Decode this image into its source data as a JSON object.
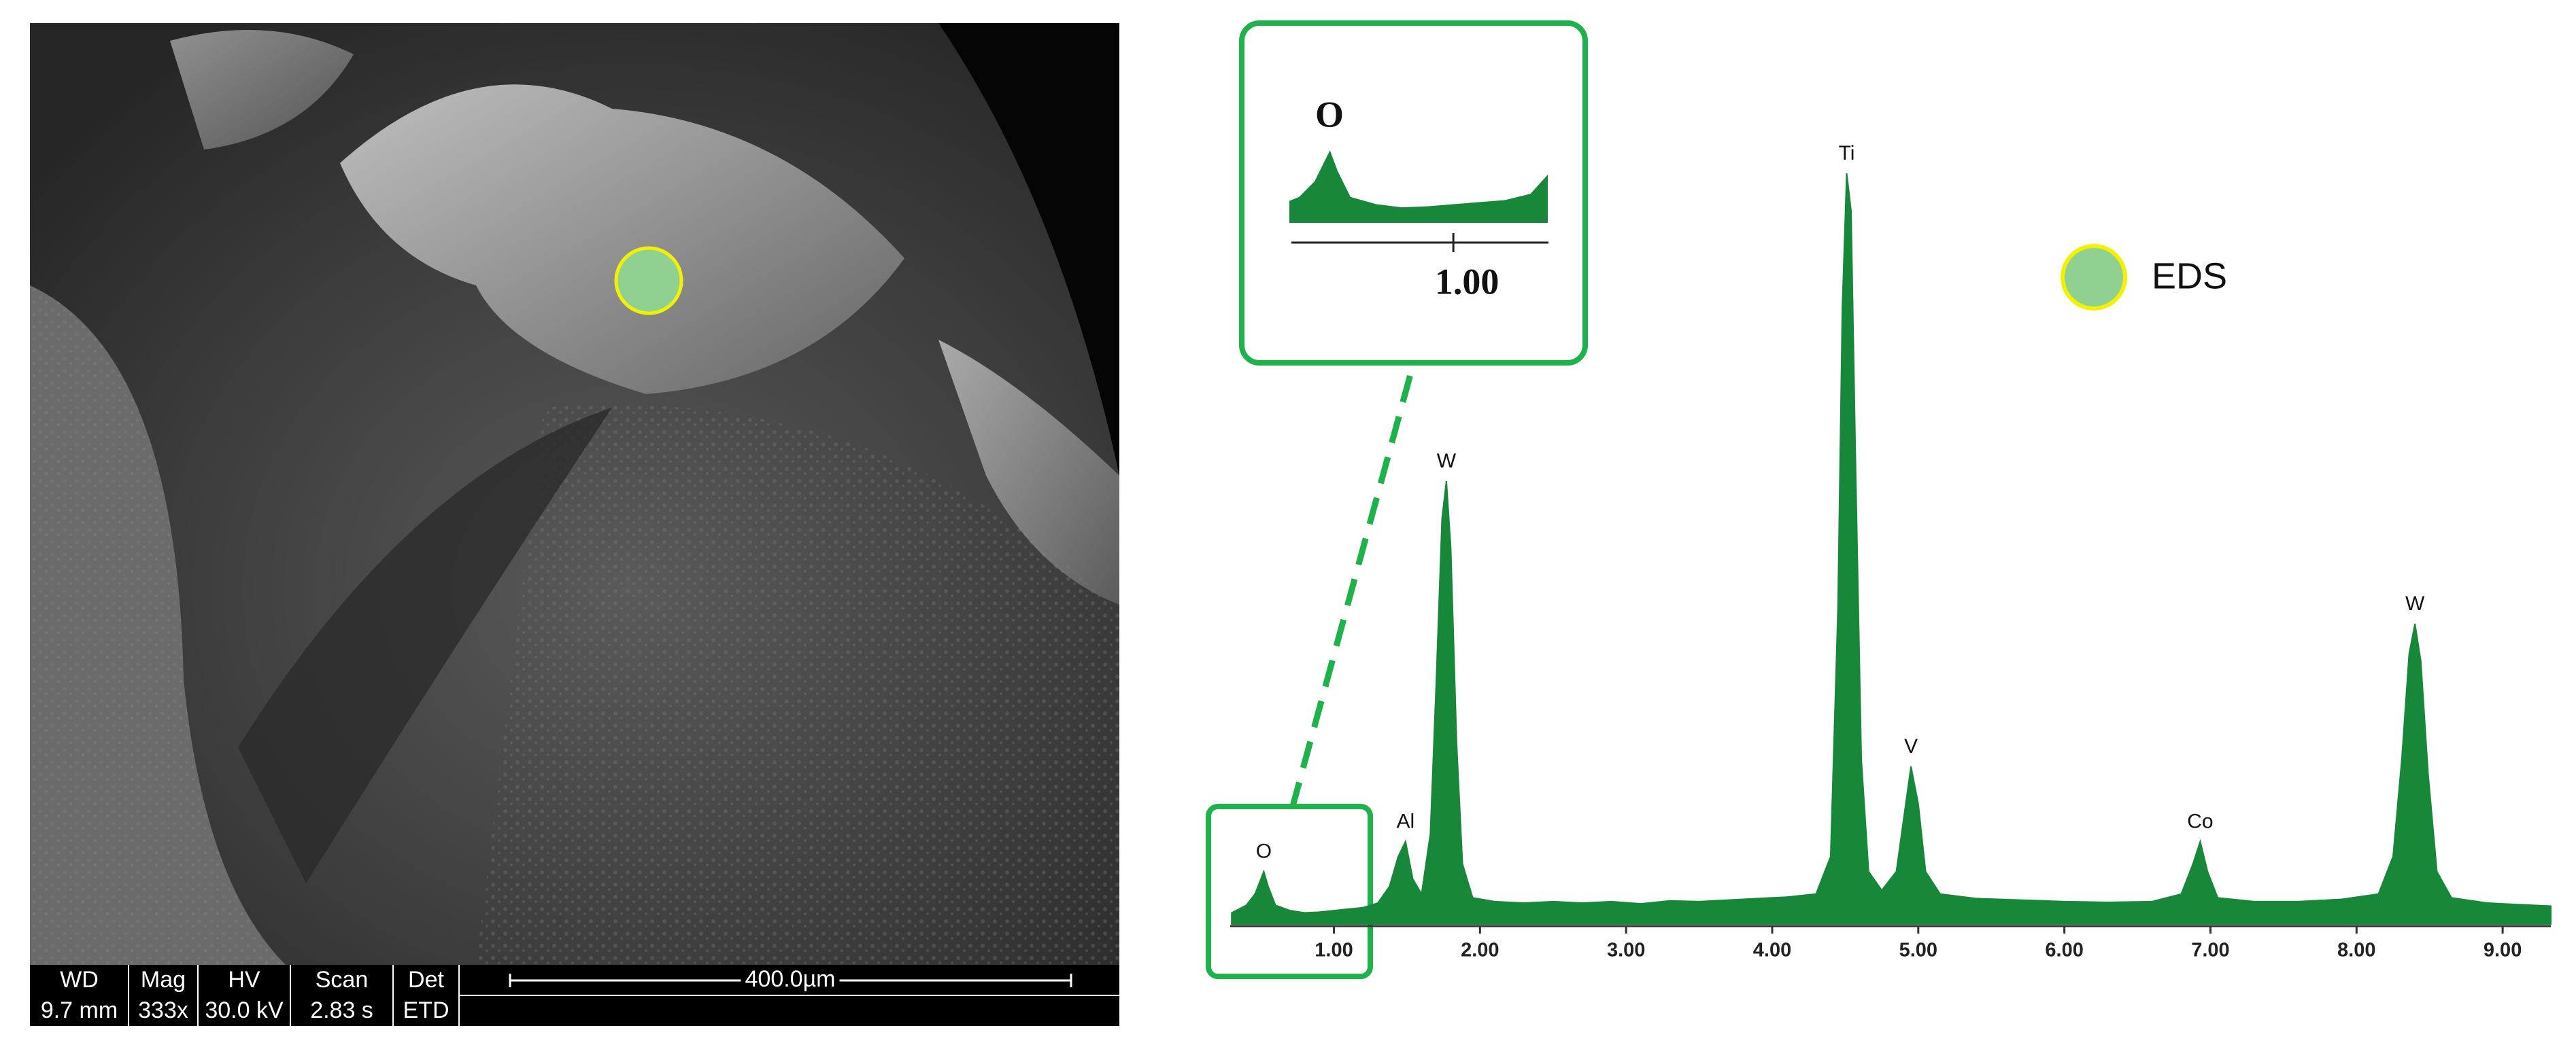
{
  "chart_data": {
    "type": "area",
    "color": "#17873a",
    "x": [
      0.3,
      0.4,
      0.46,
      0.5,
      0.52,
      0.55,
      0.6,
      0.7,
      0.8,
      0.9,
      1.0,
      1.1,
      1.2,
      1.3,
      1.38,
      1.44,
      1.49,
      1.54,
      1.6,
      1.66,
      1.7,
      1.74,
      1.77,
      1.8,
      1.84,
      1.88,
      1.95,
      2.1,
      2.3,
      2.5,
      2.7,
      2.9,
      3.1,
      3.3,
      3.5,
      3.7,
      3.9,
      4.1,
      4.3,
      4.4,
      4.45,
      4.48,
      4.51,
      4.54,
      4.57,
      4.61,
      4.66,
      4.75,
      4.85,
      4.9,
      4.95,
      5.0,
      5.05,
      5.15,
      5.4,
      5.7,
      6.0,
      6.3,
      6.6,
      6.8,
      6.88,
      6.93,
      6.98,
      7.05,
      7.3,
      7.6,
      7.9,
      8.15,
      8.25,
      8.31,
      8.36,
      8.4,
      8.44,
      8.49,
      8.55,
      8.65,
      8.9,
      9.1,
      9.33
    ],
    "values": [
      1.5,
      2.5,
      4,
      6,
      7,
      5,
      2.5,
      1.8,
      1.5,
      1.6,
      1.8,
      2,
      2.2,
      2.8,
      5,
      9,
      11,
      6,
      4,
      12,
      32,
      54,
      59,
      50,
      24,
      8,
      3.5,
      3,
      2.8,
      3,
      2.8,
      3,
      2.7,
      3.1,
      3,
      3.2,
      3.4,
      3.6,
      4,
      9,
      42,
      82,
      100,
      95,
      62,
      22,
      7,
      4.5,
      7,
      14,
      21,
      16,
      7,
      4,
      3.4,
      3.2,
      3,
      2.9,
      3,
      4,
      8,
      11,
      7,
      3.5,
      3,
      3,
      3.3,
      4,
      9,
      22,
      36,
      40,
      35,
      20,
      7,
      3.5,
      2.8,
      2.6,
      2.4
    ],
    "xlim": [
      0.29,
      9.33
    ],
    "ylim": [
      0,
      100
    ],
    "xticks": [
      {
        "value": 1,
        "label": "1.00"
      },
      {
        "value": 2,
        "label": "2.00"
      },
      {
        "value": 3,
        "label": "3.00"
      },
      {
        "value": 4,
        "label": "4.00"
      },
      {
        "value": 5,
        "label": "5.00"
      },
      {
        "value": 6,
        "label": "6.00"
      },
      {
        "value": 7,
        "label": "7.00"
      },
      {
        "value": 8,
        "label": "8.00"
      },
      {
        "value": 9,
        "label": "9.00"
      }
    ],
    "peaks": [
      {
        "label": "O",
        "x": 0.52
      },
      {
        "label": "Al",
        "x": 1.49
      },
      {
        "label": "W",
        "x": 1.77
      },
      {
        "label": "Ti",
        "x": 4.51
      },
      {
        "label": "V",
        "x": 4.95
      },
      {
        "label": "Co",
        "x": 6.93
      },
      {
        "label": "W",
        "x": 8.4
      }
    ],
    "legend": {
      "label": "EDS",
      "color": "#90d090",
      "edge": "#f2f200"
    },
    "inset": {
      "label": "O",
      "xlim": [
        0.37,
        1.37
      ],
      "ylim": [
        0,
        8
      ],
      "xticks": [
        {
          "value": 1,
          "label": "1.00"
        }
      ]
    }
  },
  "sem": {
    "fields": [
      {
        "label": "WD",
        "value": "9.7 mm"
      },
      {
        "label": "Mag",
        "value": "333x"
      },
      {
        "label": "HV",
        "value": "30.0 kV"
      },
      {
        "label": "Scan",
        "value": "2.83 s"
      },
      {
        "label": "Det",
        "value": "ETD"
      }
    ],
    "scale_bar": "400.0µm"
  }
}
